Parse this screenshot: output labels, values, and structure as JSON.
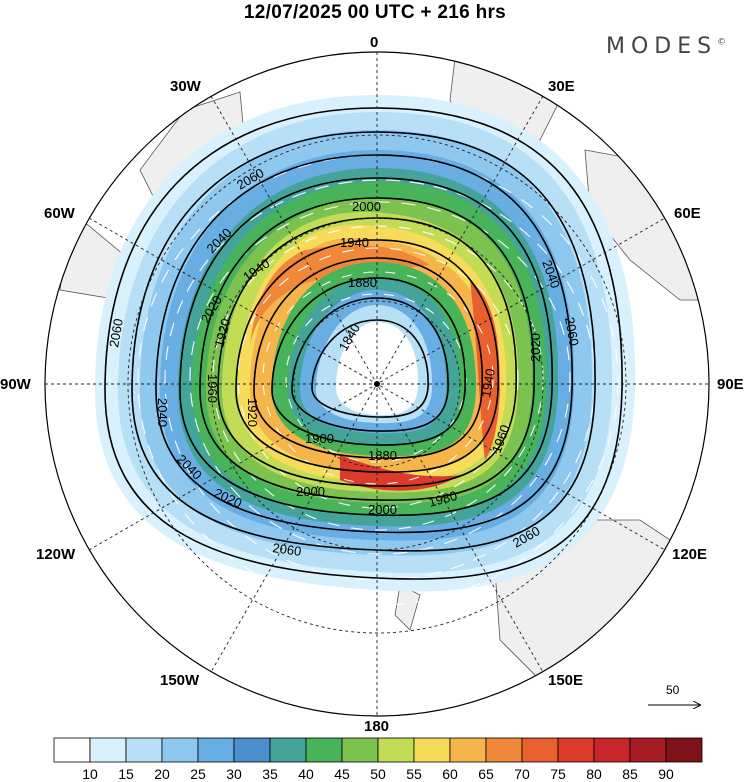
{
  "title": "12/07/2025  00 UTC  + 216 hrs",
  "brand": "MODES",
  "brand_mark": "©",
  "longitude_labels": {
    "n0": "0",
    "n30e": "30E",
    "n60e": "60E",
    "n90e": "90E",
    "n120e": "120E",
    "n150e": "150E",
    "n180": "180",
    "n150w": "150W",
    "n120w": "120W",
    "n90w": "90W",
    "n60w": "60W",
    "n30w": "30W"
  },
  "contour_labels": [
    "1840",
    "1880",
    "1900",
    "1920",
    "1940",
    "1960",
    "1980",
    "2000",
    "2020",
    "2040",
    "2060"
  ],
  "colorbar": {
    "levels": [
      "10",
      "15",
      "20",
      "25",
      "30",
      "35",
      "40",
      "45",
      "50",
      "55",
      "60",
      "65",
      "70",
      "75",
      "80",
      "85",
      "90"
    ],
    "colors": [
      "#ffffff",
      "#d9f1fc",
      "#b7e0f6",
      "#8fc8ef",
      "#68aee3",
      "#4d8fcd",
      "#45a49a",
      "#49b35a",
      "#7cc24f",
      "#c3dc55",
      "#f6dc5a",
      "#f5b54a",
      "#f0883a",
      "#e8602e",
      "#dc3a2a",
      "#c7252a",
      "#a61c24",
      "#7f1218"
    ]
  },
  "vector_reference": "50"
}
